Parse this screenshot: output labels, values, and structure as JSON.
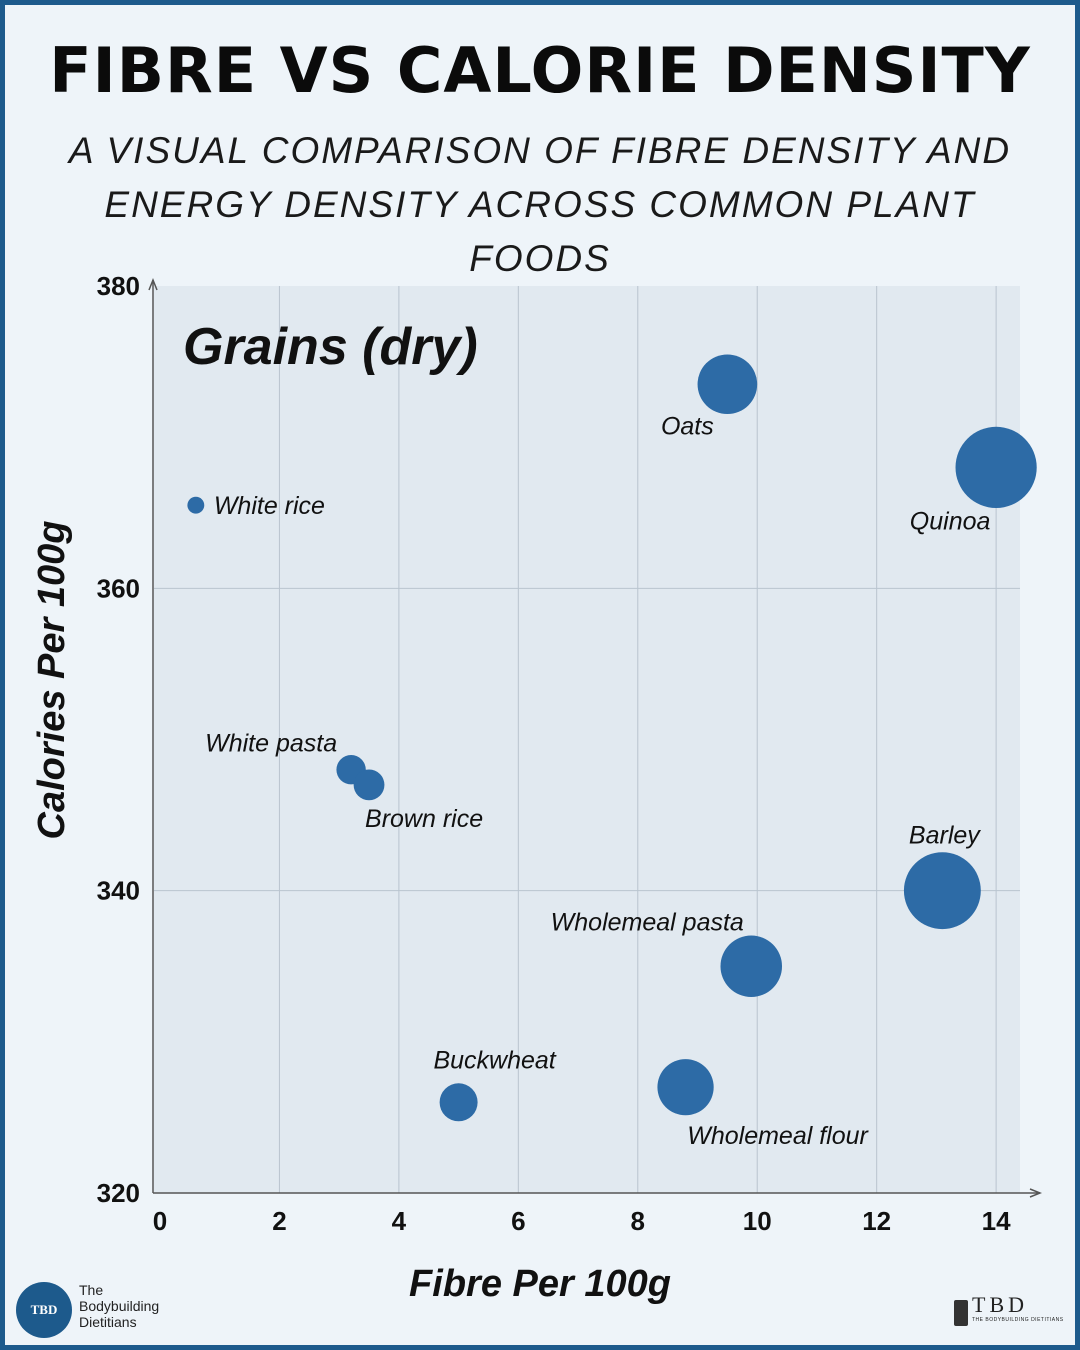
{
  "title": "FIBRE VS CALORIE DENSITY",
  "subtitle": "A VISUAL COMPARISON OF FIBRE DENSITY AND ENERGY DENSITY ACROSS COMMON PLANT FOODS",
  "brand": {
    "left_logo_mark": "TBD",
    "left_logo_text": [
      "The",
      "Bodybuilding",
      "Dietitians"
    ],
    "right_logo_mark": "TBD",
    "right_logo_sub": "THE BODYBUILDING DIETITIANS"
  },
  "colors": {
    "accent": "#2d6ba6",
    "border": "#1d5a8c",
    "plot_bg": "#e1e9f0"
  },
  "chart_data": {
    "type": "scatter",
    "title": "Grains (dry)",
    "xlabel": "Fibre Per 100g",
    "ylabel": "Calories Per 100g",
    "xlim": [
      0,
      14.4
    ],
    "ylim": [
      320,
      380
    ],
    "xticks": [
      0,
      2,
      4,
      6,
      8,
      10,
      12,
      14
    ],
    "yticks": [
      320,
      340,
      360,
      380
    ],
    "grid": true,
    "series": [
      {
        "points": [
          {
            "label": "Oats",
            "x": 9.5,
            "y": 373.5
          },
          {
            "label": "Quinoa",
            "x": 14,
            "y": 368
          },
          {
            "label": "White rice",
            "x": 0.6,
            "y": 365.5
          },
          {
            "label": "White pasta",
            "x": 3.2,
            "y": 348
          },
          {
            "label": "Brown rice",
            "x": 3.5,
            "y": 347
          },
          {
            "label": "Barley",
            "x": 13.1,
            "y": 340
          },
          {
            "label": "Wholemeal pasta",
            "x": 9.9,
            "y": 335
          },
          {
            "label": "Wholemeal flour",
            "x": 8.8,
            "y": 327
          },
          {
            "label": "Buckwheat",
            "x": 5,
            "y": 326
          }
        ]
      }
    ]
  }
}
